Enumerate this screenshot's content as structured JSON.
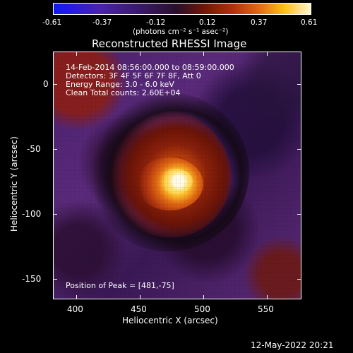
{
  "colorbar": {
    "tick_labels": [
      "-0.61",
      "-0.37",
      "-0.12",
      "0.12",
      "0.37",
      "0.61"
    ],
    "unit_label": "(photons cm⁻² s⁻¹ asec⁻²)",
    "colors": [
      "#1010ff",
      "#5a1b9a",
      "#2a1030",
      "#8a1a0a",
      "#d85a10",
      "#ffd21a",
      "#fffbe6"
    ]
  },
  "title": "Reconstructed RHESSI Image",
  "info": {
    "line1": "14-Feb-2014 08:56:00.000 to 08:59:00.000",
    "line2": "Detectors: 3F 4F 5F 6F 7F 8F, Att 0",
    "line3": "Energy Range: 3.0 - 6.0 keV",
    "line4": "Clean    Total counts: 2.60E+04"
  },
  "peak_text": "Position of Peak = [481,-75]",
  "axes": {
    "xlabel": "Heliocentric X (arcsec)",
    "ylabel": "Heliocentric Y (arcsec)",
    "x_ticks": [
      "400",
      "450",
      "500",
      "550"
    ],
    "y_ticks": [
      "0",
      "-50",
      "-100",
      "-150"
    ]
  },
  "timestamp": "12-May-2022 20:21",
  "image_colors": {
    "purple": "#4b2370",
    "red": "#6a1a10",
    "orange": "#c84a0e",
    "yellow": "#ffd21a",
    "white": "#fffbe6"
  }
}
